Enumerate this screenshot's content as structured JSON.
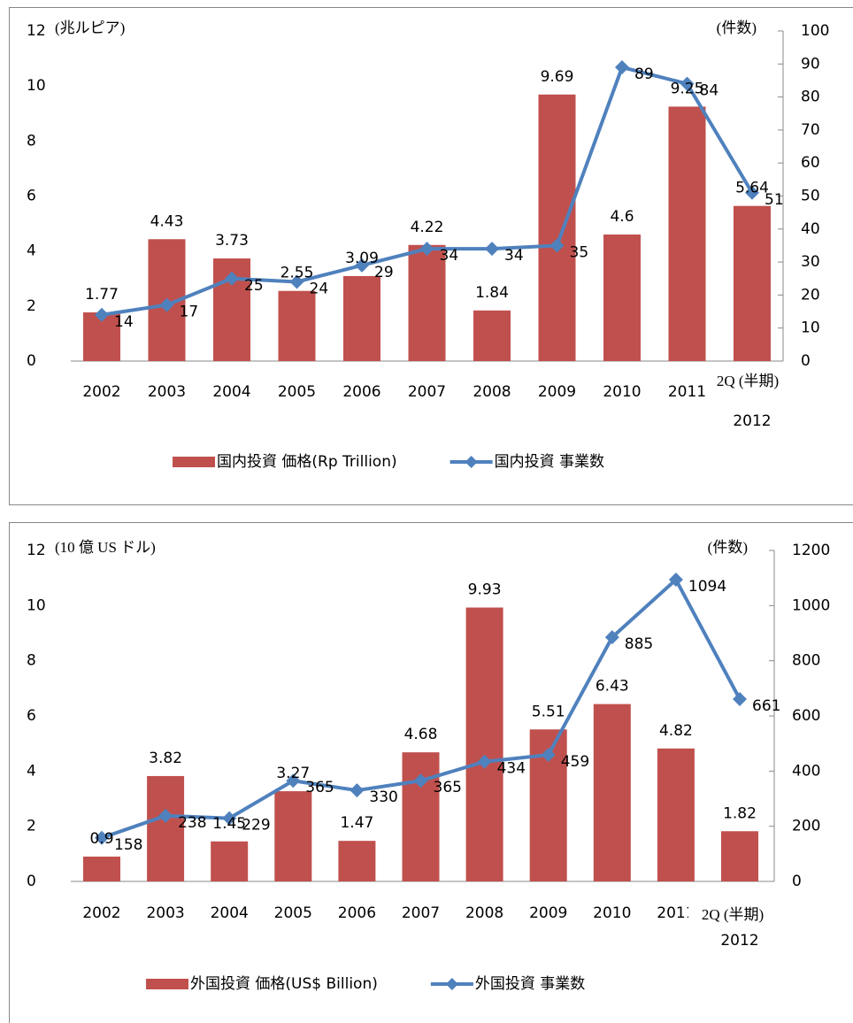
{
  "chart_data": [
    {
      "type": "bar_line",
      "y_label": "(兆ルピア)",
      "y2_label": "(件数)",
      "annotation": "2Q (半期)",
      "categories": [
        "2002",
        "2003",
        "2004",
        "2005",
        "2006",
        "2007",
        "2008",
        "2009",
        "2010",
        "2011",
        "2012"
      ],
      "series": [
        {
          "name": "国内投資 価格(Rp Trillion)",
          "type": "bar",
          "color": "#c0504d",
          "values": [
            1.77,
            4.43,
            3.73,
            2.55,
            3.09,
            4.22,
            1.84,
            9.69,
            4.6,
            9.25,
            5.64
          ]
        },
        {
          "name": "国内投資 事業数",
          "type": "line",
          "axis": "y2",
          "color": "#4f81bd",
          "values": [
            14,
            17,
            25,
            24,
            29,
            34,
            34,
            35,
            89,
            84,
            51
          ]
        }
      ],
      "ylim": [
        0,
        12
      ],
      "yticks": [
        0,
        2,
        4,
        6,
        8,
        10,
        12
      ],
      "y2lim": [
        0,
        100
      ],
      "y2ticks": [
        0,
        10,
        20,
        30,
        40,
        50,
        60,
        70,
        80,
        90,
        100
      ],
      "legend": "bottom"
    },
    {
      "type": "bar_line",
      "y_label": "(10 億 US ドル)",
      "y2_label": "(件数)",
      "annotation": "2Q (半期)",
      "categories": [
        "2002",
        "2003",
        "2004",
        "2005",
        "2006",
        "2007",
        "2008",
        "2009",
        "2010",
        "2011",
        "2012"
      ],
      "series": [
        {
          "name": "外国投資 価格(US$ Billion)",
          "type": "bar",
          "color": "#c0504d",
          "values": [
            0.9,
            3.82,
            1.45,
            3.27,
            1.47,
            4.68,
            9.93,
            5.51,
            6.43,
            4.82,
            1.82
          ]
        },
        {
          "name": "外国投資 事業数",
          "type": "line",
          "axis": "y2",
          "color": "#4f81bd",
          "values": [
            158,
            238,
            229,
            365,
            330,
            365,
            434,
            459,
            885,
            1094,
            661
          ]
        }
      ],
      "ylim": [
        0,
        12
      ],
      "yticks": [
        0,
        2,
        4,
        6,
        8,
        10,
        12
      ],
      "y2lim": [
        0,
        1200
      ],
      "y2ticks": [
        0,
        200,
        400,
        600,
        800,
        1000,
        1200
      ],
      "legend": "bottom"
    }
  ]
}
